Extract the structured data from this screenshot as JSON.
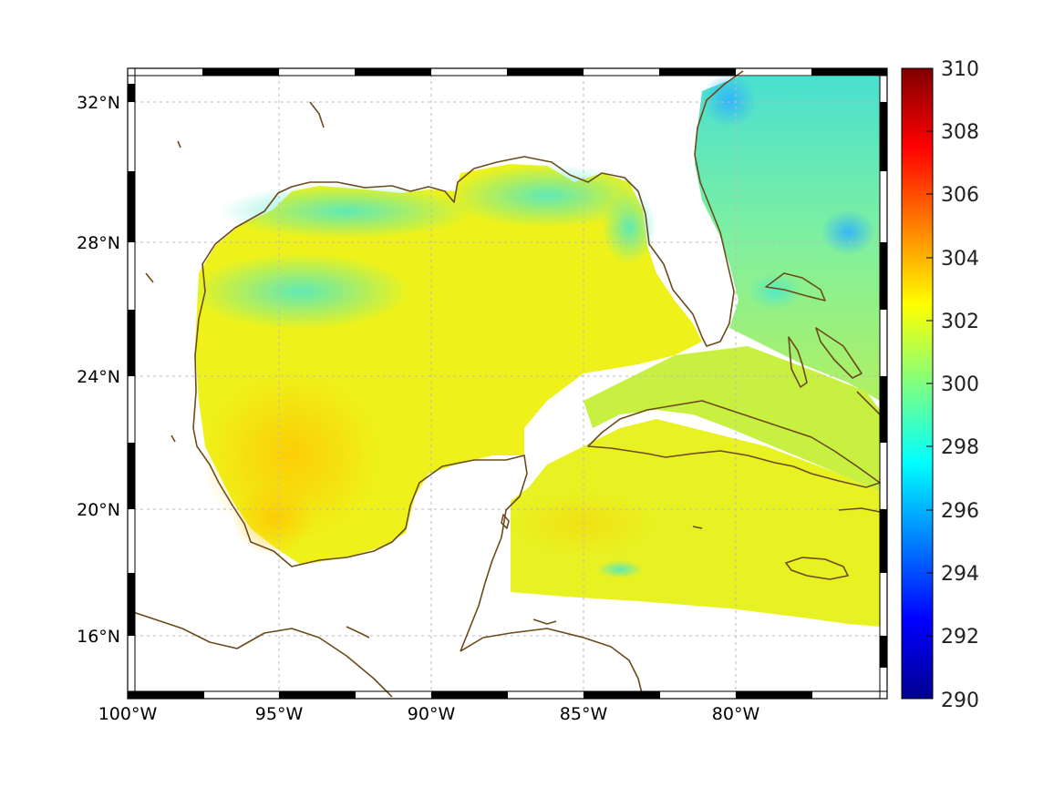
{
  "map": {
    "lon_ticks": [
      "100°W",
      "95°W",
      "90°W",
      "85°W",
      "80°W"
    ],
    "lat_ticks": [
      "32°N",
      "28°N",
      "24°N",
      "20°N",
      "16°N"
    ],
    "lon_range": [
      -100,
      -75
    ],
    "lat_range": [
      14.3,
      33
    ],
    "grid": true,
    "colormap": "jet",
    "coastline_color": "#6b4a1b"
  },
  "colorbar": {
    "range": [
      290,
      310
    ],
    "ticks": [
      "310",
      "308",
      "306",
      "304",
      "302",
      "300",
      "298",
      "296",
      "294",
      "292",
      "290"
    ],
    "colors": [
      "#00008f",
      "#0000ff",
      "#00ffff",
      "#ffff00",
      "#ff0000",
      "#800000"
    ]
  }
}
